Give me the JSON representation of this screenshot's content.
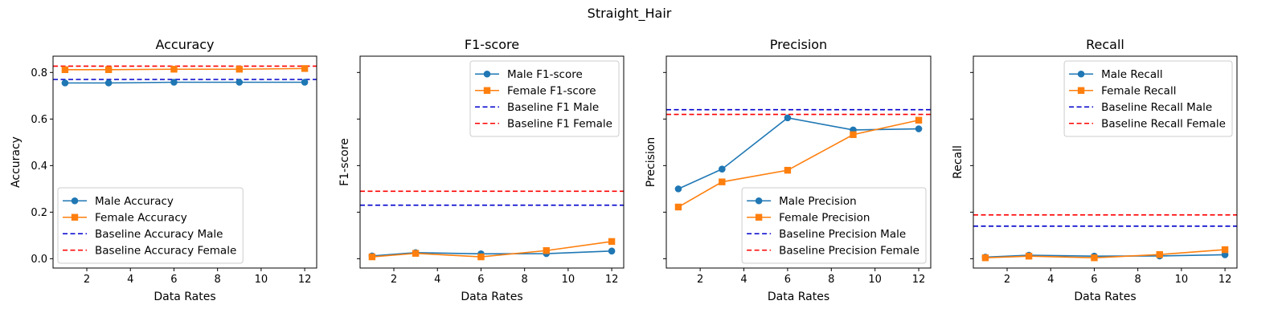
{
  "suptitle": "Straight_Hair",
  "chart_data": [
    {
      "type": "line",
      "title": "Accuracy",
      "xlabel": "Data Rates",
      "ylabel": "Accuracy",
      "x": [
        1,
        3,
        6,
        9,
        12
      ],
      "xlim": [
        0.45,
        12.55
      ],
      "ylim": [
        -0.04,
        0.87
      ],
      "xticks": [
        2,
        4,
        6,
        8,
        10,
        12
      ],
      "yticks": [
        0.0,
        0.2,
        0.4,
        0.6,
        0.8
      ],
      "ytick_labels": [
        "0.0",
        "0.2",
        "0.4",
        "0.6",
        "0.8"
      ],
      "legend_loc": "lower-left",
      "series": [
        {
          "name": "Male Accuracy",
          "values": [
            0.755,
            0.755,
            0.758,
            0.758,
            0.758
          ],
          "color": "#1f77b4",
          "marker": "circle"
        },
        {
          "name": "Female Accuracy",
          "values": [
            0.812,
            0.812,
            0.814,
            0.814,
            0.817
          ],
          "color": "#ff7f0e",
          "marker": "square"
        }
      ],
      "baselines": [
        {
          "name": "Baseline Accuracy Male",
          "value": 0.77,
          "color": "#0000cc"
        },
        {
          "name": "Baseline Accuracy Female",
          "value": 0.827,
          "color": "#ff0000"
        }
      ]
    },
    {
      "type": "line",
      "title": "F1-score",
      "xlabel": "Data Rates",
      "ylabel": "F1-score",
      "x": [
        1,
        3,
        6,
        9,
        12
      ],
      "xlim": [
        0.45,
        12.55
      ],
      "ylim": [
        -0.04,
        0.87
      ],
      "xticks": [
        2,
        4,
        6,
        8,
        10,
        12
      ],
      "yticks": [
        0.0,
        0.2,
        0.4,
        0.6,
        0.8
      ],
      "ytick_labels": [
        "",
        "",
        "",
        "",
        ""
      ],
      "legend_loc": "upper-right",
      "series": [
        {
          "name": "Male F1-score",
          "values": [
            0.012,
            0.026,
            0.021,
            0.022,
            0.033
          ],
          "color": "#1f77b4",
          "marker": "circle"
        },
        {
          "name": "Female F1-score",
          "values": [
            0.008,
            0.023,
            0.008,
            0.035,
            0.074
          ],
          "color": "#ff7f0e",
          "marker": "square"
        }
      ],
      "baselines": [
        {
          "name": "Baseline F1 Male",
          "value": 0.23,
          "color": "#0000cc"
        },
        {
          "name": "Baseline F1 Female",
          "value": 0.29,
          "color": "#ff0000"
        }
      ]
    },
    {
      "type": "line",
      "title": "Precision",
      "xlabel": "Data Rates",
      "ylabel": "Precision",
      "x": [
        1,
        3,
        6,
        9,
        12
      ],
      "xlim": [
        0.45,
        12.55
      ],
      "ylim": [
        -0.04,
        0.87
      ],
      "xticks": [
        2,
        4,
        6,
        8,
        10,
        12
      ],
      "yticks": [
        0.0,
        0.2,
        0.4,
        0.6,
        0.8
      ],
      "ytick_labels": [
        "",
        "",
        "",
        "",
        ""
      ],
      "legend_loc": "lower-right",
      "series": [
        {
          "name": "Male Precision",
          "values": [
            0.3,
            0.385,
            0.605,
            0.553,
            0.558
          ],
          "color": "#1f77b4",
          "marker": "circle"
        },
        {
          "name": "Female Precision",
          "values": [
            0.222,
            0.33,
            0.38,
            0.533,
            0.595
          ],
          "color": "#ff7f0e",
          "marker": "square"
        }
      ],
      "baselines": [
        {
          "name": "Baseline Precision Male",
          "value": 0.64,
          "color": "#0000cc"
        },
        {
          "name": "Baseline Precision Female",
          "value": 0.62,
          "color": "#ff0000"
        }
      ]
    },
    {
      "type": "line",
      "title": "Recall",
      "xlabel": "Data Rates",
      "ylabel": "Recall",
      "x": [
        1,
        3,
        6,
        9,
        12
      ],
      "xlim": [
        0.45,
        12.55
      ],
      "ylim": [
        -0.04,
        0.87
      ],
      "xticks": [
        2,
        4,
        6,
        8,
        10,
        12
      ],
      "yticks": [
        0.0,
        0.2,
        0.4,
        0.6,
        0.8
      ],
      "ytick_labels": [
        "",
        "",
        "",
        "",
        ""
      ],
      "legend_loc": "upper-right",
      "series": [
        {
          "name": "Male Recall",
          "values": [
            0.007,
            0.015,
            0.011,
            0.012,
            0.017
          ],
          "color": "#1f77b4",
          "marker": "circle"
        },
        {
          "name": "Female Recall",
          "values": [
            0.004,
            0.011,
            0.004,
            0.018,
            0.039
          ],
          "color": "#ff7f0e",
          "marker": "square"
        }
      ],
      "baselines": [
        {
          "name": "Baseline Recall Male",
          "value": 0.14,
          "color": "#0000cc"
        },
        {
          "name": "Baseline Recall Female",
          "value": 0.188,
          "color": "#ff0000"
        }
      ]
    }
  ]
}
